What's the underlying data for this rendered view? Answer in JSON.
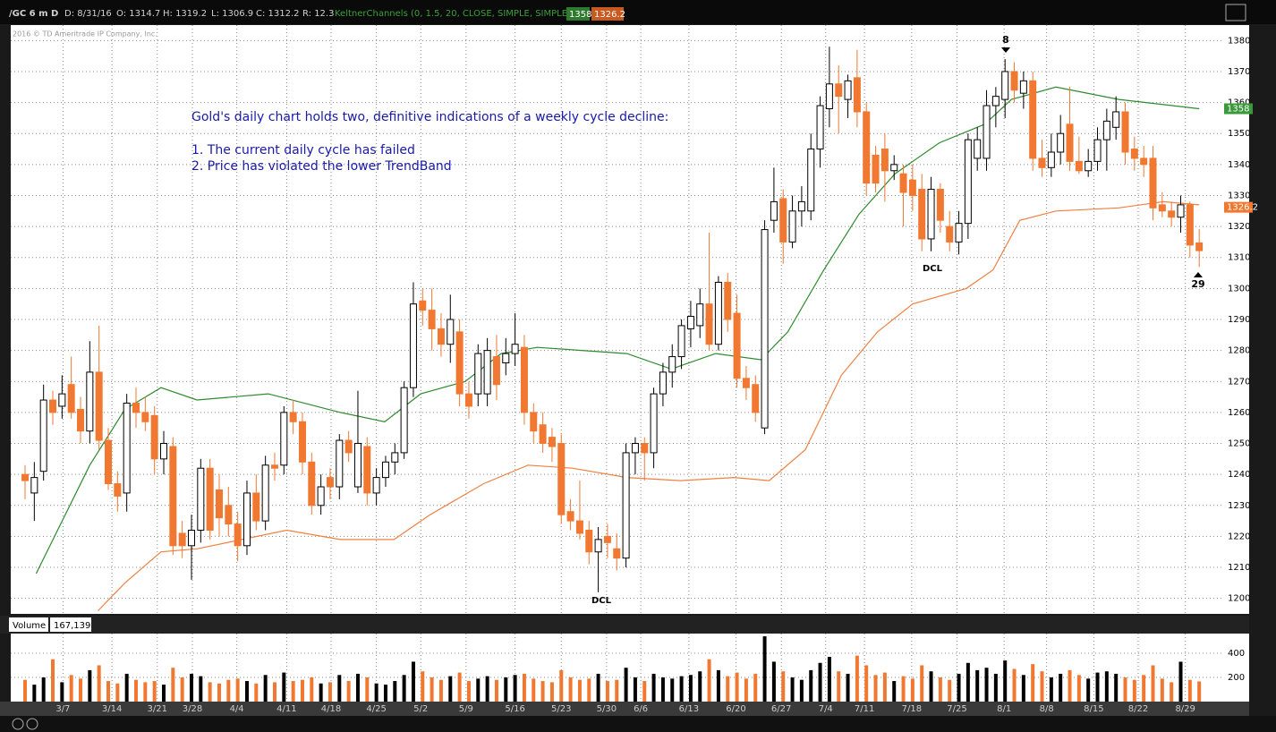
{
  "header": {
    "symbol": "/GC 6 m D",
    "date": "D: 8/31/16",
    "open": "O: 1314.7",
    "high": "H: 1319.2",
    "low": "L: 1306.9",
    "close": "C: 1312.2",
    "range": "R: 12.3",
    "study": "KeltnerChannels (0, 1.5, 20, CLOSE, SIMPLE, SIMPLE)"
  },
  "chart_data": [
    {
      "type": "candlestick",
      "copyright": "2016 © TD Ameritrade IP Company, Inc.",
      "annotations": [
        "Gold's daily chart holds two, definitive indications of a weekly cycle decline:",
        "1. The current daily cycle has failed",
        "2. Price has violated the lower TrendBand"
      ],
      "markers": [
        "8",
        "29",
        "DCL",
        "DCL"
      ],
      "xlim": [
        -1.55,
        129.5
      ],
      "ylim": [
        1195,
        1385
      ],
      "yticks": [
        1200,
        1210,
        1220,
        1230,
        1240,
        1250,
        1260,
        1270,
        1280,
        1290,
        1300,
        1310,
        1320,
        1330,
        1340,
        1350,
        1360,
        1370,
        1380
      ],
      "xticks": [
        {
          "value": 4.1,
          "label": "3/7"
        },
        {
          "value": 9.4,
          "label": "3/14"
        },
        {
          "value": 14.3,
          "label": "3/21"
        },
        {
          "value": 18.1,
          "label": "3/28"
        },
        {
          "value": 22.9,
          "label": "4/4"
        },
        {
          "value": 28.3,
          "label": "4/11"
        },
        {
          "value": 33.1,
          "label": "4/18"
        },
        {
          "value": 38,
          "label": "4/25"
        },
        {
          "value": 42.8,
          "label": "5/2"
        },
        {
          "value": 47.7,
          "label": "5/9"
        },
        {
          "value": 53,
          "label": "5/16"
        },
        {
          "value": 58,
          "label": "5/23"
        },
        {
          "value": 62.9,
          "label": "5/30"
        },
        {
          "value": 66.6,
          "label": "6/6"
        },
        {
          "value": 71.8,
          "label": "6/13"
        },
        {
          "value": 76.9,
          "label": "6/20"
        },
        {
          "value": 81.8,
          "label": "6/27"
        },
        {
          "value": 86.6,
          "label": "7/4"
        },
        {
          "value": 90.8,
          "label": "7/11"
        },
        {
          "value": 95.9,
          "label": "7/18"
        },
        {
          "value": 100.8,
          "label": "7/25"
        },
        {
          "value": 105.9,
          "label": "8/1"
        },
        {
          "value": 110.5,
          "label": "8/8"
        },
        {
          "value": 115.6,
          "label": "8/15"
        },
        {
          "value": 120.4,
          "label": "8/22"
        },
        {
          "value": 125.5,
          "label": "8/29"
        }
      ],
      "up_color": "#ffffff",
      "down_color": "#f07830",
      "grid": true,
      "candles": [
        [
          1240,
          1243,
          1232,
          1238
        ],
        [
          1234,
          1244,
          1225,
          1239
        ],
        [
          1241,
          1269,
          1238,
          1264
        ],
        [
          1264,
          1267,
          1256,
          1260
        ],
        [
          1262,
          1272,
          1258,
          1266
        ],
        [
          1269,
          1278,
          1258,
          1260
        ],
        [
          1261,
          1265,
          1250,
          1254
        ],
        [
          1254,
          1283,
          1250,
          1273
        ],
        [
          1273,
          1288,
          1248,
          1251
        ],
        [
          1251,
          1255,
          1235,
          1237
        ],
        [
          1237,
          1241,
          1228,
          1233
        ],
        [
          1234,
          1266,
          1228,
          1263
        ],
        [
          1263,
          1268,
          1255,
          1260
        ],
        [
          1260,
          1265,
          1254,
          1257
        ],
        [
          1259,
          1262,
          1240,
          1245
        ],
        [
          1245,
          1254,
          1240,
          1250
        ],
        [
          1249,
          1252,
          1214,
          1217
        ],
        [
          1221,
          1225,
          1213,
          1217
        ],
        [
          1217,
          1227,
          1206,
          1222
        ],
        [
          1222,
          1245,
          1218,
          1242
        ],
        [
          1242,
          1245,
          1219,
          1222
        ],
        [
          1235,
          1240,
          1220,
          1226
        ],
        [
          1230,
          1236,
          1220,
          1224
        ],
        [
          1224,
          1228,
          1212,
          1217
        ],
        [
          1217,
          1238,
          1214,
          1234
        ],
        [
          1234,
          1240,
          1222,
          1225
        ],
        [
          1225,
          1246,
          1222,
          1243
        ],
        [
          1243,
          1247,
          1238,
          1242
        ],
        [
          1243,
          1262,
          1240,
          1260
        ],
        [
          1260,
          1264,
          1253,
          1257
        ],
        [
          1257,
          1260,
          1240,
          1244
        ],
        [
          1244,
          1247,
          1227,
          1230
        ],
        [
          1230,
          1240,
          1227,
          1236
        ],
        [
          1239,
          1242,
          1232,
          1236
        ],
        [
          1236,
          1253,
          1232,
          1251
        ],
        [
          1251,
          1254,
          1244,
          1247
        ],
        [
          1236,
          1267,
          1234,
          1250
        ],
        [
          1249,
          1252,
          1230,
          1234
        ],
        [
          1234,
          1242,
          1230,
          1239
        ],
        [
          1239,
          1246,
          1236,
          1244
        ],
        [
          1244,
          1250,
          1240,
          1247
        ],
        [
          1247,
          1270,
          1245,
          1268
        ],
        [
          1268,
          1302,
          1265,
          1295
        ],
        [
          1296,
          1300,
          1288,
          1293
        ],
        [
          1293,
          1300,
          1280,
          1287
        ],
        [
          1287,
          1292,
          1278,
          1282
        ],
        [
          1282,
          1298,
          1276,
          1290
        ],
        [
          1286,
          1290,
          1262,
          1266
        ],
        [
          1266,
          1270,
          1258,
          1262
        ],
        [
          1266,
          1282,
          1262,
          1279
        ],
        [
          1266,
          1284,
          1262,
          1280
        ],
        [
          1278,
          1285,
          1264,
          1269
        ],
        [
          1276,
          1284,
          1272,
          1279
        ],
        [
          1279,
          1292,
          1275,
          1282
        ],
        [
          1281,
          1285,
          1256,
          1260
        ],
        [
          1260,
          1263,
          1250,
          1254
        ],
        [
          1256,
          1260,
          1247,
          1250
        ],
        [
          1252,
          1255,
          1244,
          1249
        ],
        [
          1250,
          1253,
          1224,
          1227
        ],
        [
          1228,
          1232,
          1222,
          1225
        ],
        [
          1225,
          1238,
          1219,
          1221
        ],
        [
          1222,
          1225,
          1211,
          1215
        ],
        [
          1215,
          1223,
          1202,
          1219
        ],
        [
          1220,
          1224,
          1213,
          1218
        ],
        [
          1216,
          1221,
          1209,
          1213
        ],
        [
          1213,
          1250,
          1210,
          1247
        ],
        [
          1247,
          1252,
          1240,
          1250
        ],
        [
          1250,
          1252,
          1238,
          1247
        ],
        [
          1247,
          1268,
          1242,
          1266
        ],
        [
          1266,
          1276,
          1262,
          1273
        ],
        [
          1273,
          1282,
          1268,
          1278
        ],
        [
          1278,
          1290,
          1274,
          1288
        ],
        [
          1287,
          1296,
          1281,
          1291
        ],
        [
          1288,
          1300,
          1284,
          1295
        ],
        [
          1295,
          1318,
          1280,
          1282
        ],
        [
          1282,
          1304,
          1280,
          1302
        ],
        [
          1302,
          1305,
          1286,
          1290
        ],
        [
          1292,
          1298,
          1268,
          1271
        ],
        [
          1271,
          1275,
          1264,
          1268
        ],
        [
          1269,
          1272,
          1257,
          1260
        ],
        [
          1255,
          1322,
          1253,
          1319
        ],
        [
          1322,
          1339,
          1318,
          1328
        ],
        [
          1329,
          1332,
          1308,
          1315
        ],
        [
          1315,
          1330,
          1313,
          1325
        ],
        [
          1325,
          1333,
          1320,
          1328
        ],
        [
          1325,
          1350,
          1322,
          1345
        ],
        [
          1345,
          1362,
          1339,
          1359
        ],
        [
          1358,
          1378,
          1352,
          1366
        ],
        [
          1366,
          1372,
          1350,
          1362
        ],
        [
          1361,
          1369,
          1355,
          1367
        ],
        [
          1368,
          1377,
          1352,
          1357
        ],
        [
          1357,
          1360,
          1330,
          1334
        ],
        [
          1343,
          1346,
          1331,
          1334
        ],
        [
          1345,
          1350,
          1328,
          1338
        ],
        [
          1338,
          1343,
          1335,
          1340
        ],
        [
          1337,
          1340,
          1320,
          1331
        ],
        [
          1335,
          1340,
          1325,
          1330
        ],
        [
          1332,
          1337,
          1312,
          1316
        ],
        [
          1316,
          1336,
          1312,
          1332
        ],
        [
          1332,
          1334,
          1318,
          1322
        ],
        [
          1320,
          1325,
          1312,
          1315
        ],
        [
          1315,
          1325,
          1311,
          1321
        ],
        [
          1321,
          1350,
          1316,
          1348
        ],
        [
          1342,
          1352,
          1338,
          1348
        ],
        [
          1342,
          1364,
          1338,
          1359
        ],
        [
          1359,
          1365,
          1352,
          1362
        ],
        [
          1361,
          1374,
          1355,
          1370
        ],
        [
          1370,
          1373,
          1360,
          1364
        ],
        [
          1363,
          1370,
          1358,
          1367
        ],
        [
          1367,
          1370,
          1338,
          1342
        ],
        [
          1342,
          1348,
          1336,
          1339
        ],
        [
          1339,
          1350,
          1336,
          1344
        ],
        [
          1344,
          1356,
          1340,
          1350
        ],
        [
          1353,
          1365,
          1338,
          1341
        ],
        [
          1341,
          1349,
          1337,
          1338
        ],
        [
          1338,
          1345,
          1336,
          1341
        ],
        [
          1341,
          1352,
          1338,
          1348
        ],
        [
          1348,
          1358,
          1338,
          1354
        ],
        [
          1352,
          1362,
          1348,
          1357
        ],
        [
          1357,
          1360,
          1340,
          1344
        ],
        [
          1345,
          1349,
          1338,
          1342
        ],
        [
          1342,
          1346,
          1336,
          1340
        ],
        [
          1342,
          1346,
          1322,
          1326
        ],
        [
          1327,
          1331,
          1323,
          1325
        ],
        [
          1325,
          1328,
          1320,
          1323
        ],
        [
          1323,
          1330,
          1318,
          1327
        ],
        [
          1327,
          1328,
          1310,
          1314
        ],
        [
          1314.7,
          1319.2,
          1306.9,
          1312.2
        ]
      ],
      "series": [
        {
          "color": "#2e8b2e",
          "x": [
            1.2,
            7,
            10.8,
            14.7,
            18.6,
            26.3,
            34.1,
            38.9,
            42.8,
            47.6,
            51.5,
            55.4,
            60.2,
            65.1,
            69.9,
            74.7,
            79.6,
            82.5,
            86.4,
            90.2,
            94.1,
            98.9,
            103.8,
            106.7,
            111.5,
            118.3,
            127
          ],
          "values": [
            1208,
            1243,
            1261,
            1268,
            1264,
            1266,
            1260,
            1257,
            1266,
            1270,
            1279,
            1281,
            1280,
            1279,
            1274,
            1279,
            1277,
            1286,
            1306,
            1324,
            1337,
            1347,
            1353,
            1361,
            1365,
            1361,
            1358
          ]
        },
        {
          "color": "#f08040",
          "x": [
            7.9,
            10.8,
            14.7,
            18.6,
            28.3,
            34.1,
            39.9,
            43.8,
            49.6,
            54.4,
            59.2,
            65.1,
            70.9,
            76.7,
            80.5,
            84.4,
            88.3,
            92.2,
            96,
            101.8,
            104.7,
            107.6,
            111.5,
            118.3,
            123.1,
            127
          ],
          "values": [
            1196,
            1205,
            1215,
            1216,
            1222,
            1219,
            1219,
            1227,
            1237,
            1243,
            1242,
            1239,
            1238,
            1239,
            1238,
            1248,
            1272,
            1286,
            1295,
            1300,
            1306,
            1322,
            1325,
            1326,
            1328,
            1327
          ]
        }
      ],
      "tags": [
        {
          "value": 1358,
          "color": "#3a9a3a"
        },
        {
          "value": 1326.2,
          "color": "#f07830"
        }
      ]
    },
    {
      "type": "bar",
      "title": "Volume",
      "readout": "167,139",
      "ylim": [
        0,
        548
      ],
      "yticks": [
        200,
        400
      ],
      "up_color": "#000000",
      "down_color": "#f07830",
      "values": [
        180,
        140,
        200,
        350,
        160,
        220,
        190,
        260,
        300,
        170,
        150,
        230,
        180,
        160,
        170,
        140,
        280,
        200,
        230,
        210,
        160,
        150,
        180,
        190,
        170,
        150,
        220,
        160,
        240,
        170,
        180,
        200,
        150,
        160,
        220,
        170,
        230,
        200,
        150,
        140,
        170,
        220,
        330,
        250,
        200,
        180,
        210,
        240,
        170,
        190,
        210,
        180,
        200,
        220,
        230,
        190,
        170,
        160,
        260,
        200,
        180,
        190,
        230,
        170,
        180,
        280,
        200,
        170,
        230,
        200,
        190,
        210,
        220,
        250,
        350,
        260,
        210,
        240,
        190,
        230,
        540,
        330,
        250,
        200,
        180,
        260,
        320,
        370,
        250,
        230,
        380,
        300,
        220,
        240,
        170,
        210,
        190,
        300,
        250,
        200,
        180,
        230,
        320,
        260,
        280,
        230,
        340,
        270,
        220,
        310,
        250,
        200,
        230,
        260,
        220,
        190,
        240,
        250,
        230,
        200,
        180,
        220,
        300,
        190,
        160,
        330,
        180,
        167
      ]
    }
  ]
}
